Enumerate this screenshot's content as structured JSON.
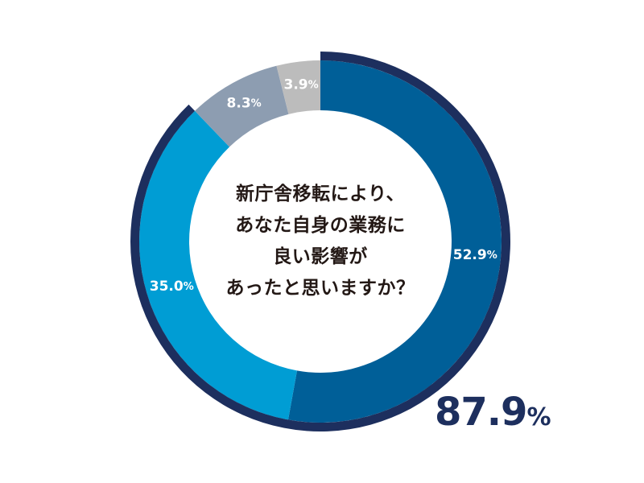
{
  "chart_data": {
    "type": "pie",
    "donut": true,
    "question_lines": [
      "新庁舎移転により、",
      "あなた自身の業務に",
      "良い影響が",
      "あったと思いますか？"
    ],
    "slices": [
      {
        "label": "52.9",
        "value": 52.9,
        "color": "#005f98"
      },
      {
        "label": "35.0",
        "value": 35.0,
        "color": "#009dd4"
      },
      {
        "label": "8.3",
        "value": 8.3,
        "color": "#8d9db1"
      },
      {
        "label": "3.9",
        "value": 3.9,
        "color": "#bcbcbc"
      }
    ],
    "label_color": "#ffffff",
    "percent_sign": "%",
    "total": {
      "value": "87.9",
      "sign": "%",
      "color": "#1d2f5e"
    },
    "outline_color": "#1d2f5e"
  }
}
